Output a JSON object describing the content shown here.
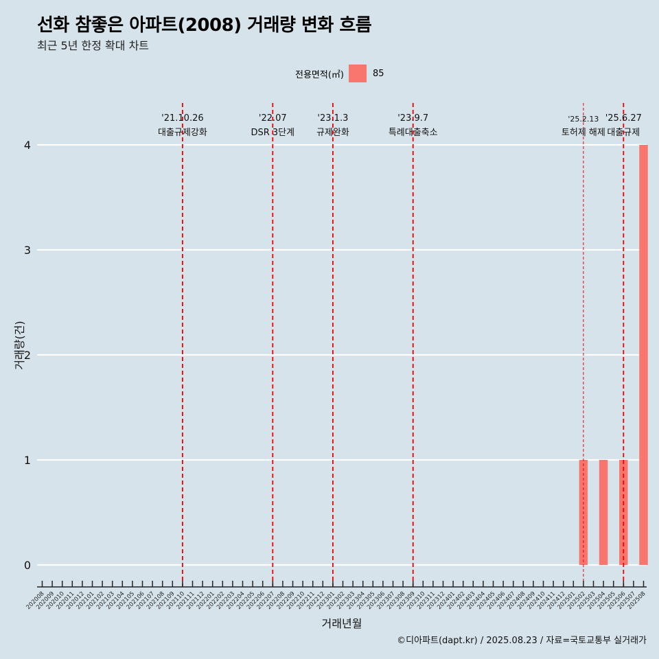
{
  "title": "선화 참좋은 아파트(2008) 거래량 변화 흐름",
  "subtitle": "최근 5년 한정 확대 차트",
  "legend": {
    "title": "전용면적(㎡)",
    "item": "85",
    "color": "#f8766d"
  },
  "caption": "©디아파트(dapt.kr) / 2025.08.23 / 자료=국토교통부 실거래가",
  "chart_data": {
    "type": "bar",
    "title": "선화 참좋은 아파트(2008) 거래량 변화 흐름",
    "xlabel": "거래년월",
    "ylabel": "거래량(건)",
    "ylim": [
      0,
      4
    ],
    "yticks": [
      0,
      1,
      2,
      3,
      4
    ],
    "categories": [
      "202008",
      "202009",
      "202010",
      "202011",
      "202012",
      "202101",
      "202102",
      "202103",
      "202104",
      "202105",
      "202106",
      "202107",
      "202108",
      "202109",
      "202110",
      "202111",
      "202112",
      "202201",
      "202202",
      "202203",
      "202204",
      "202205",
      "202206",
      "202207",
      "202208",
      "202209",
      "202210",
      "202211",
      "202212",
      "202301",
      "202302",
      "202303",
      "202304",
      "202305",
      "202306",
      "202307",
      "202308",
      "202309",
      "202310",
      "202311",
      "202312",
      "202401",
      "202402",
      "202403",
      "202404",
      "202405",
      "202406",
      "202407",
      "202408",
      "202409",
      "202410",
      "202411",
      "202412",
      "202501",
      "202502",
      "202503",
      "202504",
      "202505",
      "202506",
      "202507",
      "202508"
    ],
    "series": [
      {
        "name": "85",
        "color": "#f8766d",
        "values": [
          0,
          0,
          0,
          0,
          0,
          0,
          0,
          0,
          0,
          0,
          0,
          0,
          0,
          0,
          0,
          0,
          0,
          0,
          0,
          0,
          0,
          0,
          0,
          0,
          0,
          0,
          0,
          0,
          0,
          0,
          0,
          0,
          0,
          0,
          0,
          0,
          0,
          0,
          0,
          0,
          0,
          0,
          0,
          0,
          0,
          0,
          0,
          0,
          0,
          0,
          0,
          0,
          0,
          0,
          1,
          0,
          1,
          0,
          1,
          0,
          4
        ]
      }
    ],
    "annotations": [
      {
        "x": "202110",
        "date": "'21.10.26",
        "label": "대출규제강화",
        "style": "thick"
      },
      {
        "x": "202207",
        "date": "'22.07",
        "label": "DSR 3단계",
        "style": "thick"
      },
      {
        "x": "202301",
        "date": "'23.1.3",
        "label": "규제완화",
        "style": "thick"
      },
      {
        "x": "202309",
        "date": "'23.9.7",
        "label": "특례대출축소",
        "style": "thick"
      },
      {
        "x": "202502",
        "date": "'25.2.13",
        "label": "토허제 해제",
        "style": "thin"
      },
      {
        "x": "202506",
        "date": "'25.6.27",
        "label": "대출규제",
        "style": "thick"
      }
    ]
  }
}
